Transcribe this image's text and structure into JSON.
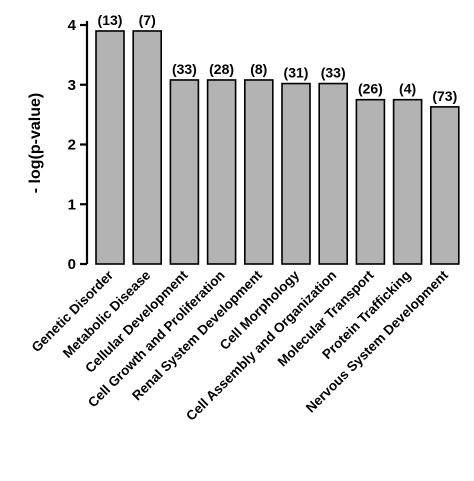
{
  "chart_data": {
    "type": "bar",
    "categories": [
      "Genetic Disorder",
      "Metabolic Disease",
      "Cellular Development",
      "Cell Growth and Proliferation",
      "Renal System Development",
      "Cell Morphology",
      "Cell Assembly and Organization",
      "Molecular Transport",
      "Protein Trafficking",
      "Nervous System Development"
    ],
    "values": [
      3.9,
      3.9,
      3.08,
      3.08,
      3.08,
      3.02,
      3.02,
      2.75,
      2.75,
      2.63
    ],
    "counts": [
      "(13)",
      "(7)",
      "(33)",
      "(28)",
      "(8)",
      "(31)",
      "(33)",
      "(26)",
      "(4)",
      "(73)"
    ],
    "ylabel": "- log(p-value)",
    "ylim": [
      0,
      4
    ],
    "yticks": [
      0,
      1,
      2,
      3,
      4
    ],
    "bar_color": "#b3b3b3",
    "grid": false,
    "legend": "none"
  }
}
